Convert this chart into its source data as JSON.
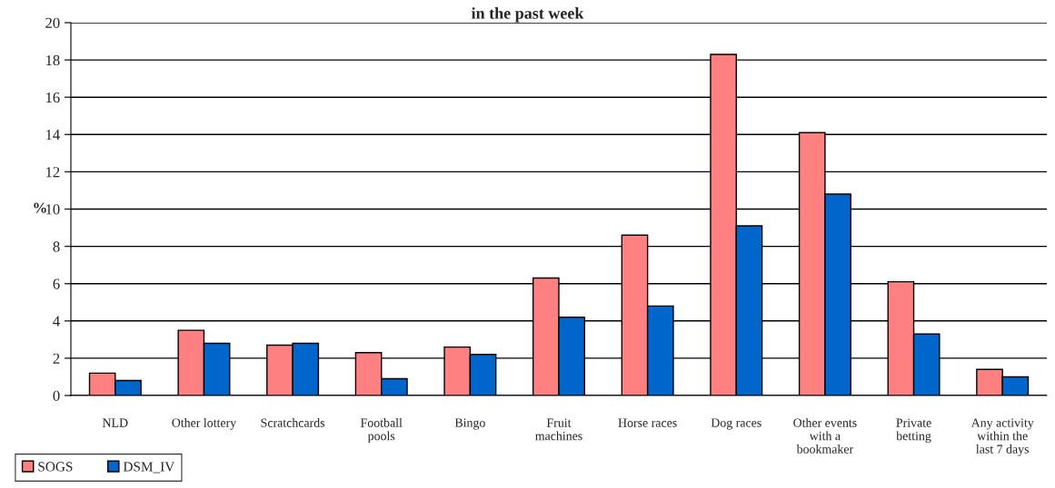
{
  "chart_data": {
    "type": "bar",
    "title": "in the past week",
    "ylabel": "%",
    "categories": [
      "NLD",
      "Other lottery",
      "Scratchcards",
      "Football pools",
      "Bingo",
      "Fruit machines",
      "Horse races",
      "Dog races",
      "Other events with a bookmaker",
      "Private betting",
      "Any activity within the last 7 days"
    ],
    "series": [
      {
        "name": "SOGS",
        "color": "#ff8080",
        "values": [
          1.2,
          3.5,
          2.7,
          2.3,
          2.6,
          6.3,
          8.6,
          18.3,
          14.1,
          6.1,
          1.4
        ]
      },
      {
        "name": "DSM_IV",
        "color": "#0066cc",
        "values": [
          0.8,
          2.8,
          2.8,
          0.9,
          2.2,
          4.2,
          4.8,
          9.1,
          10.8,
          3.3,
          1.0
        ]
      }
    ],
    "ylim": [
      0,
      20
    ],
    "yticks": [
      0,
      2,
      4,
      6,
      8,
      10,
      12,
      14,
      16,
      18,
      20
    ],
    "grid": "y",
    "legend": "bottom left"
  }
}
